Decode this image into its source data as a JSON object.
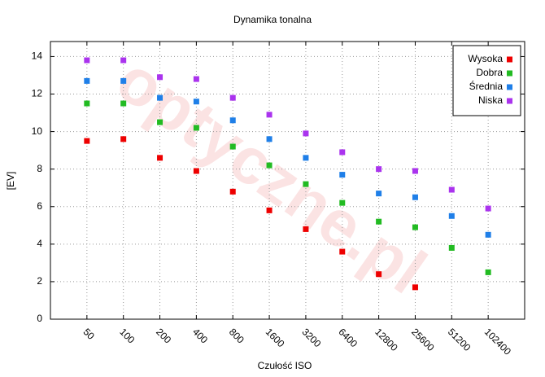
{
  "chart_data": {
    "type": "scatter",
    "title": "Dynamika tonalna",
    "watermark": "optyczne.pl",
    "x_label": "Czułość ISO",
    "y_label": "[EV]",
    "categories": [
      "50",
      "100",
      "200",
      "400",
      "800",
      "1600",
      "3200",
      "6400",
      "12800",
      "25600",
      "51200",
      "102400"
    ],
    "series": [
      {
        "name": "Wysoka",
        "color": "#ee0000",
        "values": [
          9.5,
          9.6,
          8.6,
          7.9,
          6.8,
          5.8,
          4.8,
          3.6,
          2.4,
          1.7,
          null,
          null
        ]
      },
      {
        "name": "Dobra",
        "color": "#22bb22",
        "values": [
          11.5,
          11.5,
          10.5,
          10.2,
          9.2,
          8.2,
          7.2,
          6.2,
          5.2,
          4.9,
          3.8,
          2.5
        ]
      },
      {
        "name": "Średnia",
        "color": "#1f7fe8",
        "values": [
          12.7,
          12.7,
          11.8,
          11.6,
          10.6,
          9.6,
          8.6,
          7.7,
          6.7,
          6.5,
          5.5,
          4.5
        ]
      },
      {
        "name": "Niska",
        "color": "#aa33ee",
        "values": [
          13.8,
          13.8,
          12.9,
          12.8,
          11.8,
          10.9,
          9.9,
          8.9,
          8.0,
          7.9,
          6.9,
          5.9
        ]
      }
    ],
    "ylim": [
      0,
      14.8
    ],
    "yticks": [
      0,
      2,
      4,
      6,
      8,
      10,
      12,
      14
    ],
    "grid": true,
    "legend": "top-right"
  }
}
